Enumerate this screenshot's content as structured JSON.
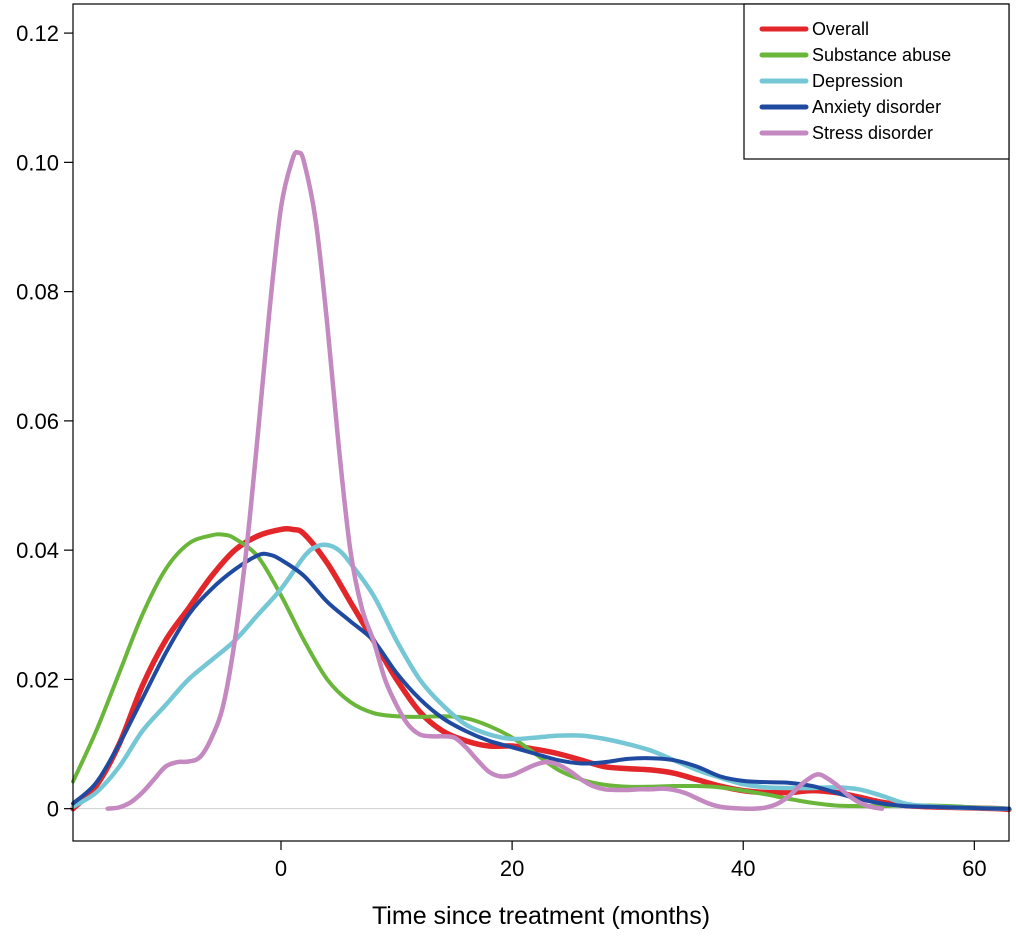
{
  "chart_data": {
    "type": "line",
    "title": "",
    "xlabel": "Time since treatment (months)",
    "ylabel": "",
    "xlim": [
      -18,
      63
    ],
    "ylim": [
      -0.005,
      0.1245
    ],
    "grid": false,
    "legend_position": "top-right",
    "x_ticks": [
      0,
      20,
      40,
      60
    ],
    "x_tick_labels": [
      "0",
      "20",
      "40",
      "60"
    ],
    "y_ticks": [
      0,
      0.02,
      0.04,
      0.06,
      0.08,
      0.1,
      0.12
    ],
    "y_tick_labels": [
      "0",
      "0.02",
      "0.04",
      "0.06",
      "0.08",
      "0.10",
      "0.12"
    ],
    "series": [
      {
        "name": "Overall",
        "color": "#e3262a",
        "points": [
          [
            -18,
            0
          ],
          [
            -16,
            0.0035
          ],
          [
            -14,
            0.01
          ],
          [
            -12,
            0.019
          ],
          [
            -10,
            0.026
          ],
          [
            -8,
            0.031
          ],
          [
            -6,
            0.036
          ],
          [
            -4,
            0.04
          ],
          [
            -2,
            0.0422
          ],
          [
            0,
            0.0432
          ],
          [
            1,
            0.0432
          ],
          [
            2,
            0.0425
          ],
          [
            4,
            0.038
          ],
          [
            6,
            0.032
          ],
          [
            8,
            0.026
          ],
          [
            10,
            0.02
          ],
          [
            12,
            0.015
          ],
          [
            14,
            0.012
          ],
          [
            16,
            0.0105
          ],
          [
            18,
            0.0097
          ],
          [
            20,
            0.0097
          ],
          [
            22,
            0.0092
          ],
          [
            24,
            0.0085
          ],
          [
            26,
            0.0075
          ],
          [
            28,
            0.0065
          ],
          [
            30,
            0.0062
          ],
          [
            32,
            0.006
          ],
          [
            34,
            0.0055
          ],
          [
            36,
            0.0045
          ],
          [
            38,
            0.0035
          ],
          [
            40,
            0.0028
          ],
          [
            42,
            0.0025
          ],
          [
            44,
            0.0025
          ],
          [
            46,
            0.0028
          ],
          [
            48,
            0.0025
          ],
          [
            50,
            0.0018
          ],
          [
            52,
            0.001
          ],
          [
            54,
            0.0005
          ],
          [
            56,
            0.0003
          ],
          [
            58,
            0.0002
          ],
          [
            60,
            0.0001
          ],
          [
            62,
            0
          ],
          [
            63,
            -0.0001
          ]
        ]
      },
      {
        "name": "Substance abuse",
        "color": "#6ab63a",
        "points": [
          [
            -18,
            0.0042
          ],
          [
            -16,
            0.012
          ],
          [
            -14,
            0.021
          ],
          [
            -12,
            0.03
          ],
          [
            -10,
            0.037
          ],
          [
            -8,
            0.041
          ],
          [
            -6,
            0.0423
          ],
          [
            -5,
            0.0424
          ],
          [
            -4,
            0.0418
          ],
          [
            -2,
            0.039
          ],
          [
            0,
            0.033
          ],
          [
            2,
            0.026
          ],
          [
            4,
            0.02
          ],
          [
            6,
            0.0165
          ],
          [
            8,
            0.0148
          ],
          [
            10,
            0.0143
          ],
          [
            12,
            0.0142
          ],
          [
            14,
            0.0143
          ],
          [
            16,
            0.014
          ],
          [
            18,
            0.0128
          ],
          [
            20,
            0.011
          ],
          [
            22,
            0.0085
          ],
          [
            24,
            0.006
          ],
          [
            26,
            0.0045
          ],
          [
            28,
            0.0037
          ],
          [
            30,
            0.0034
          ],
          [
            32,
            0.0034
          ],
          [
            34,
            0.0035
          ],
          [
            36,
            0.0035
          ],
          [
            38,
            0.0033
          ],
          [
            40,
            0.0028
          ],
          [
            42,
            0.0022
          ],
          [
            44,
            0.0015
          ],
          [
            46,
            0.0009
          ],
          [
            48,
            0.0005
          ],
          [
            50,
            0.0004
          ],
          [
            52,
            0.0004
          ],
          [
            54,
            0.0005
          ],
          [
            56,
            0.0005
          ],
          [
            58,
            0.0004
          ],
          [
            60,
            0.0002
          ],
          [
            62,
            0.0001
          ],
          [
            63,
            0
          ]
        ]
      },
      {
        "name": "Depression",
        "color": "#76c7d5",
        "points": [
          [
            -18,
            0.0003
          ],
          [
            -16,
            0.0025
          ],
          [
            -14,
            0.0065
          ],
          [
            -12,
            0.012
          ],
          [
            -10,
            0.016
          ],
          [
            -8,
            0.02
          ],
          [
            -6,
            0.023
          ],
          [
            -4,
            0.026
          ],
          [
            -2,
            0.03
          ],
          [
            0,
            0.034
          ],
          [
            2,
            0.039
          ],
          [
            3,
            0.0405
          ],
          [
            4,
            0.0408
          ],
          [
            5,
            0.04
          ],
          [
            6,
            0.038
          ],
          [
            8,
            0.033
          ],
          [
            10,
            0.026
          ],
          [
            12,
            0.02
          ],
          [
            14,
            0.016
          ],
          [
            16,
            0.013
          ],
          [
            18,
            0.0115
          ],
          [
            20,
            0.0108
          ],
          [
            22,
            0.011
          ],
          [
            24,
            0.0113
          ],
          [
            26,
            0.0113
          ],
          [
            28,
            0.0108
          ],
          [
            30,
            0.01
          ],
          [
            32,
            0.009
          ],
          [
            34,
            0.0075
          ],
          [
            36,
            0.006
          ],
          [
            38,
            0.0048
          ],
          [
            40,
            0.0038
          ],
          [
            42,
            0.0033
          ],
          [
            44,
            0.0032
          ],
          [
            46,
            0.0032
          ],
          [
            48,
            0.0033
          ],
          [
            50,
            0.003
          ],
          [
            52,
            0.002
          ],
          [
            54,
            0.0008
          ],
          [
            56,
            0.0004
          ],
          [
            58,
            0.0002
          ],
          [
            60,
            0.0001
          ],
          [
            62,
            0
          ],
          [
            63,
            0
          ]
        ]
      },
      {
        "name": "Anxiety disorder",
        "color": "#1f4aa0",
        "points": [
          [
            -18,
            0.0008
          ],
          [
            -16,
            0.004
          ],
          [
            -14,
            0.01
          ],
          [
            -12,
            0.017
          ],
          [
            -10,
            0.024
          ],
          [
            -8,
            0.03
          ],
          [
            -6,
            0.034
          ],
          [
            -4,
            0.037
          ],
          [
            -2,
            0.0392
          ],
          [
            -1,
            0.0393
          ],
          [
            0,
            0.0385
          ],
          [
            2,
            0.036
          ],
          [
            4,
            0.032
          ],
          [
            6,
            0.029
          ],
          [
            8,
            0.026
          ],
          [
            10,
            0.021
          ],
          [
            12,
            0.017
          ],
          [
            14,
            0.014
          ],
          [
            16,
            0.012
          ],
          [
            18,
            0.0105
          ],
          [
            20,
            0.0095
          ],
          [
            22,
            0.0085
          ],
          [
            24,
            0.0075
          ],
          [
            26,
            0.007
          ],
          [
            28,
            0.0072
          ],
          [
            30,
            0.0077
          ],
          [
            32,
            0.0078
          ],
          [
            34,
            0.0075
          ],
          [
            36,
            0.0065
          ],
          [
            38,
            0.005
          ],
          [
            40,
            0.0043
          ],
          [
            42,
            0.0041
          ],
          [
            44,
            0.004
          ],
          [
            46,
            0.0035
          ],
          [
            48,
            0.0025
          ],
          [
            50,
            0.0015
          ],
          [
            52,
            0.0008
          ],
          [
            54,
            0.0004
          ],
          [
            56,
            0.0003
          ],
          [
            58,
            0.0002
          ],
          [
            60,
            0.0001
          ],
          [
            62,
            0
          ],
          [
            63,
            0
          ]
        ]
      },
      {
        "name": "Stress disorder",
        "color": "#c489c0",
        "points": [
          [
            -15,
            0
          ],
          [
            -14,
            0.0002
          ],
          [
            -13,
            0.001
          ],
          [
            -12,
            0.0025
          ],
          [
            -11,
            0.0045
          ],
          [
            -10,
            0.0065
          ],
          [
            -9,
            0.0072
          ],
          [
            -8,
            0.0073
          ],
          [
            -7,
            0.008
          ],
          [
            -6,
            0.011
          ],
          [
            -5,
            0.016
          ],
          [
            -4,
            0.026
          ],
          [
            -3,
            0.04
          ],
          [
            -2,
            0.058
          ],
          [
            -1,
            0.077
          ],
          [
            0,
            0.093
          ],
          [
            1,
            0.1005
          ],
          [
            1.5,
            0.1015
          ],
          [
            2,
            0.1
          ],
          [
            3,
            0.091
          ],
          [
            4,
            0.075
          ],
          [
            5,
            0.056
          ],
          [
            6,
            0.04
          ],
          [
            7,
            0.031
          ],
          [
            8,
            0.026
          ],
          [
            9,
            0.02
          ],
          [
            10,
            0.016
          ],
          [
            11,
            0.013
          ],
          [
            12,
            0.0115
          ],
          [
            13,
            0.0112
          ],
          [
            14,
            0.0112
          ],
          [
            15,
            0.011
          ],
          [
            16,
            0.0095
          ],
          [
            17,
            0.0075
          ],
          [
            18,
            0.0057
          ],
          [
            19,
            0.005
          ],
          [
            20,
            0.0052
          ],
          [
            21,
            0.006
          ],
          [
            22,
            0.0068
          ],
          [
            23,
            0.0072
          ],
          [
            24,
            0.0068
          ],
          [
            25,
            0.0058
          ],
          [
            26,
            0.0045
          ],
          [
            27,
            0.0035
          ],
          [
            28,
            0.003
          ],
          [
            29,
            0.0029
          ],
          [
            30,
            0.0029
          ],
          [
            31,
            0.003
          ],
          [
            32,
            0.003
          ],
          [
            33,
            0.0031
          ],
          [
            34,
            0.0029
          ],
          [
            35,
            0.0024
          ],
          [
            36,
            0.0016
          ],
          [
            37,
            0.0008
          ],
          [
            38,
            0.0003
          ],
          [
            39,
            0.0001
          ],
          [
            40,
            0
          ],
          [
            41,
            0
          ],
          [
            42,
            0.0002
          ],
          [
            43,
            0.0008
          ],
          [
            44,
            0.002
          ],
          [
            45,
            0.0037
          ],
          [
            46,
            0.005
          ],
          [
            46.5,
            0.0053
          ],
          [
            47,
            0.005
          ],
          [
            48,
            0.0038
          ],
          [
            49,
            0.0022
          ],
          [
            50,
            0.001
          ],
          [
            51,
            0.0003
          ],
          [
            52,
            0
          ]
        ]
      }
    ]
  }
}
